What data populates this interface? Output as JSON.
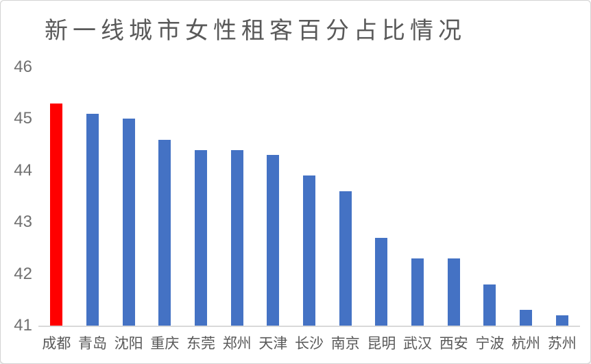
{
  "chart_data": {
    "type": "bar",
    "title": "新一线城市女性租客百分占比情况",
    "categories": [
      "成都",
      "青岛",
      "沈阳",
      "重庆",
      "东莞",
      "郑州",
      "天津",
      "长沙",
      "南京",
      "昆明",
      "武汉",
      "西安",
      "宁波",
      "杭州",
      "苏州"
    ],
    "values": [
      45.3,
      45.1,
      45.0,
      44.6,
      44.4,
      44.4,
      44.3,
      43.9,
      43.6,
      42.7,
      42.3,
      42.3,
      41.8,
      41.3,
      41.2
    ],
    "xlabel": "",
    "ylabel": "",
    "ylim": [
      41,
      46
    ],
    "yticks": [
      41,
      42,
      43,
      44,
      45,
      46
    ],
    "grid": false,
    "legend_position": "none",
    "bar_color": "#4472c4",
    "highlight_color": "#ff0000",
    "highlight_index": 0,
    "highlight_category": "成都"
  },
  "colors": {
    "title_text": "#595959",
    "axis_tick_text": "#707070",
    "category_text": "#595959",
    "axis_line": "#d9d9d9",
    "background": "#ffffff"
  }
}
